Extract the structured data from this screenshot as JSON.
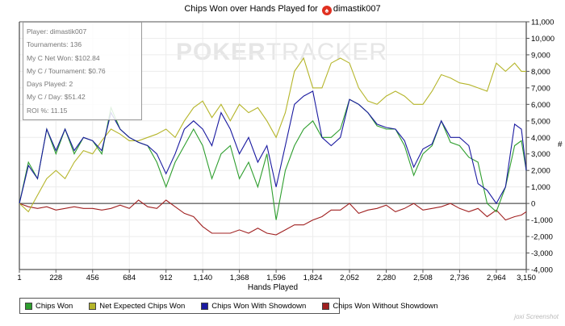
{
  "title": {
    "text": "Chips Won over Hands Played for",
    "player": "dimastik007",
    "icon": "pokerstars-icon"
  },
  "watermark": {
    "bold": "POKER",
    "light": "TRACKER"
  },
  "info": [
    "Player: dimastik007",
    "Tournaments: 136",
    "My C Net Won: $102.84",
    "My C / Tournament: $0.76",
    "Days Played: 2",
    "My C / Day: $51.42",
    "ROI %: 11.15"
  ],
  "credit": "joxi Screenshot",
  "chart_data": {
    "type": "line",
    "title": "Chips Won over Hands Played for dimastik007",
    "xlabel": "Hands Played",
    "ylabel": "#",
    "xlim": [
      1,
      3150
    ],
    "ylim": [
      -4000,
      11000
    ],
    "xticks": [
      1,
      228,
      456,
      684,
      912,
      1140,
      1368,
      1596,
      1824,
      2052,
      2280,
      2508,
      2736,
      2964,
      3150
    ],
    "xtick_labels": [
      "1",
      "228",
      "456",
      "684",
      "912",
      "1,140",
      "1,368",
      "1,596",
      "1,824",
      "2,052",
      "2,280",
      "2,508",
      "2,736",
      "2,964",
      "3,150"
    ],
    "yticks": [
      -4000,
      -3000,
      -2000,
      -1000,
      0,
      1000,
      2000,
      3000,
      4000,
      5000,
      6000,
      7000,
      8000,
      9000,
      10000,
      11000
    ],
    "ytick_labels": [
      "-4,000",
      "-3,000",
      "-2,000",
      "-1,000",
      "0",
      "1,000",
      "2,000",
      "3,000",
      "4,000",
      "5,000",
      "6,000",
      "7,000",
      "8,000",
      "9,000",
      "10,000",
      "11,000"
    ],
    "grid": true,
    "legend_position": "bottom",
    "x": [
      1,
      57,
      114,
      171,
      228,
      285,
      342,
      399,
      456,
      513,
      570,
      627,
      684,
      741,
      798,
      855,
      912,
      969,
      1026,
      1083,
      1140,
      1197,
      1254,
      1311,
      1368,
      1425,
      1482,
      1539,
      1596,
      1653,
      1710,
      1767,
      1824,
      1881,
      1938,
      1995,
      2052,
      2109,
      2166,
      2223,
      2280,
      2337,
      2394,
      2451,
      2508,
      2565,
      2622,
      2679,
      2736,
      2793,
      2850,
      2907,
      2964,
      3021,
      3078,
      3120,
      3150
    ],
    "series": [
      {
        "name": "Chips Won",
        "color": "#2e9e2e",
        "values": [
          0,
          2500,
          1500,
          4500,
          3000,
          4500,
          3000,
          4000,
          3800,
          3000,
          5800,
          4500,
          4000,
          3700,
          3500,
          2500,
          1000,
          2500,
          3500,
          4500,
          3500,
          1500,
          3000,
          3500,
          1500,
          2500,
          1000,
          3000,
          -1000,
          2000,
          3500,
          4500,
          5000,
          4000,
          4000,
          4500,
          6300,
          6000,
          5500,
          4700,
          4500,
          4500,
          3500,
          1700,
          3000,
          3500,
          5000,
          3700,
          3500,
          2800,
          2500,
          0,
          -500,
          1000,
          3500,
          3800,
          2000
        ]
      },
      {
        "name": "Net Expected Chips Won",
        "color": "#b5b52a",
        "values": [
          0,
          -500,
          500,
          1500,
          2000,
          1500,
          2500,
          3200,
          3000,
          3800,
          4500,
          4200,
          3800,
          3800,
          4000,
          4200,
          4500,
          4000,
          5000,
          5800,
          6200,
          5200,
          6000,
          5000,
          6000,
          5500,
          5800,
          5000,
          4000,
          5500,
          8000,
          8800,
          7000,
          7000,
          8500,
          8800,
          8500,
          7000,
          6200,
          6000,
          6500,
          6800,
          6500,
          6000,
          6000,
          6800,
          7800,
          7600,
          7300,
          7200,
          7000,
          6800,
          8500,
          8000,
          8500,
          8000,
          8000
        ]
      },
      {
        "name": "Chips Won With Showdown",
        "color": "#1a1aa0",
        "values": [
          0,
          2300,
          1500,
          4500,
          3200,
          4500,
          3200,
          4000,
          3800,
          3200,
          5500,
          4500,
          4000,
          3700,
          3500,
          3000,
          1800,
          3000,
          4500,
          5000,
          4500,
          3500,
          5500,
          4500,
          3000,
          4000,
          2500,
          3500,
          1000,
          3500,
          6000,
          6500,
          6800,
          4000,
          3500,
          4000,
          6300,
          6000,
          5500,
          4800,
          4600,
          4500,
          3800,
          2200,
          3300,
          3600,
          5000,
          4000,
          4000,
          3500,
          1200,
          800,
          0,
          1000,
          4800,
          4500,
          2000
        ]
      },
      {
        "name": "Chips Won Without Showdown",
        "color": "#a02020",
        "values": [
          0,
          -200,
          -300,
          -200,
          -400,
          -300,
          -200,
          -300,
          -300,
          -400,
          -300,
          -100,
          -300,
          200,
          -200,
          -300,
          200,
          -200,
          -600,
          -800,
          -1400,
          -1800,
          -1800,
          -1800,
          -1600,
          -1800,
          -1500,
          -1800,
          -1900,
          -1600,
          -1300,
          -1300,
          -1000,
          -800,
          -400,
          -400,
          0,
          -600,
          -400,
          -300,
          -100,
          -500,
          -300,
          0,
          -400,
          -300,
          -200,
          0,
          -300,
          -500,
          -300,
          -800,
          -400,
          -1000,
          -800,
          -700,
          -500
        ]
      }
    ]
  }
}
